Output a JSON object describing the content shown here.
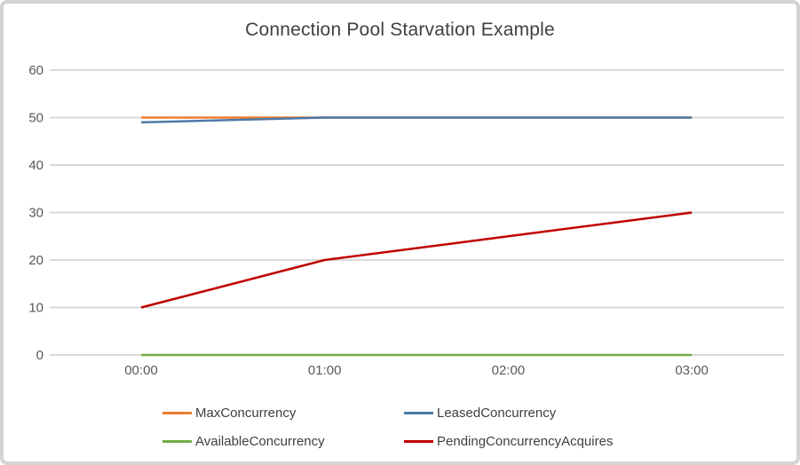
{
  "frame": {
    "background": "#ffffff",
    "border_color": "#d4d4d4"
  },
  "chart_data": {
    "type": "line",
    "title": "Connection Pool Starvation Example",
    "categories": [
      "00:00",
      "01:00",
      "02:00",
      "03:00"
    ],
    "series": [
      {
        "name": "MaxConcurrency",
        "color": "#ED7D31",
        "values": [
          50,
          50,
          50,
          50
        ]
      },
      {
        "name": "LeasedConcurrency",
        "color": "#4E79A7",
        "values": [
          49,
          50,
          50,
          50
        ]
      },
      {
        "name": "AvailableConcurrency",
        "color": "#70AD47",
        "values": [
          0,
          0,
          0,
          0
        ]
      },
      {
        "name": "PendingConcurrencyAcquires",
        "color": "#C00000",
        "values": [
          10,
          20,
          25,
          30
        ]
      }
    ],
    "xlabel": "",
    "ylabel": "",
    "ylim": [
      0,
      60
    ],
    "yticks": [
      0,
      10,
      20,
      30,
      40,
      50,
      60
    ],
    "grid": "horizontal",
    "gridline_color": "#D9D9D9",
    "axis_label_color": "#595959",
    "title_color": "#404040",
    "legend_position": "bottom"
  }
}
